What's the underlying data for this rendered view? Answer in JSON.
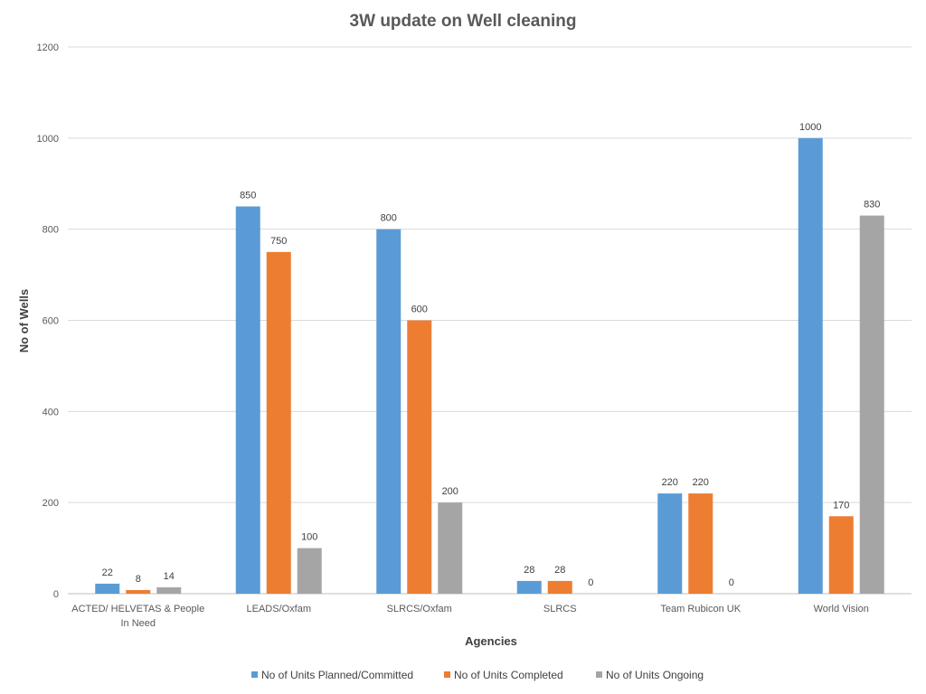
{
  "chart_data": {
    "type": "bar",
    "title": "3W update on Well cleaning",
    "xlabel": "Agencies",
    "ylabel": "No of Wells",
    "ylim": [
      0,
      1200
    ],
    "yticks": [
      0,
      200,
      400,
      600,
      800,
      1000,
      1200
    ],
    "grid": true,
    "legend": "bottom",
    "categories": [
      [
        "ACTED/ HELVETAS & People",
        "In Need"
      ],
      [
        "LEADS/Oxfam"
      ],
      [
        "SLRCS/Oxfam"
      ],
      [
        "SLRCS"
      ],
      [
        "Team Rubicon UK"
      ],
      [
        "World Vision"
      ]
    ],
    "series": [
      {
        "name": "No of Units Planned/Committed",
        "color": "#5B9BD5",
        "values": [
          22,
          850,
          800,
          28,
          220,
          1000
        ]
      },
      {
        "name": "No of Units Completed",
        "color": "#ED7D31",
        "values": [
          8,
          750,
          600,
          28,
          220,
          170
        ]
      },
      {
        "name": "No of Units Ongoing",
        "color": "#A5A5A5",
        "values": [
          14,
          100,
          200,
          0,
          0,
          830
        ]
      }
    ]
  }
}
